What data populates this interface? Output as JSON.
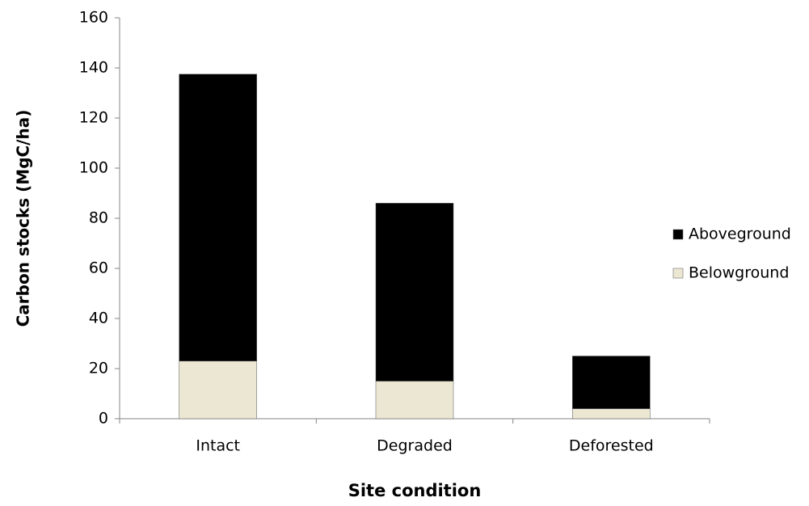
{
  "chart_data": {
    "type": "stacked_bar",
    "x_label": "Site condition",
    "y_label": "Carbon stocks (MgC/ha)",
    "categories": [
      "Intact",
      "Degraded",
      "Deforested"
    ],
    "series": [
      {
        "name": "Belowground",
        "color": "#ebe7d3",
        "values": [
          23,
          15,
          4
        ]
      },
      {
        "name": "Aboveground",
        "color": "#000000",
        "values": [
          114.5,
          71,
          21
        ]
      }
    ],
    "ylim": [
      0,
      160
    ],
    "yticks": [
      0,
      20,
      40,
      60,
      80,
      100,
      120,
      140,
      160
    ],
    "legend": "right"
  }
}
